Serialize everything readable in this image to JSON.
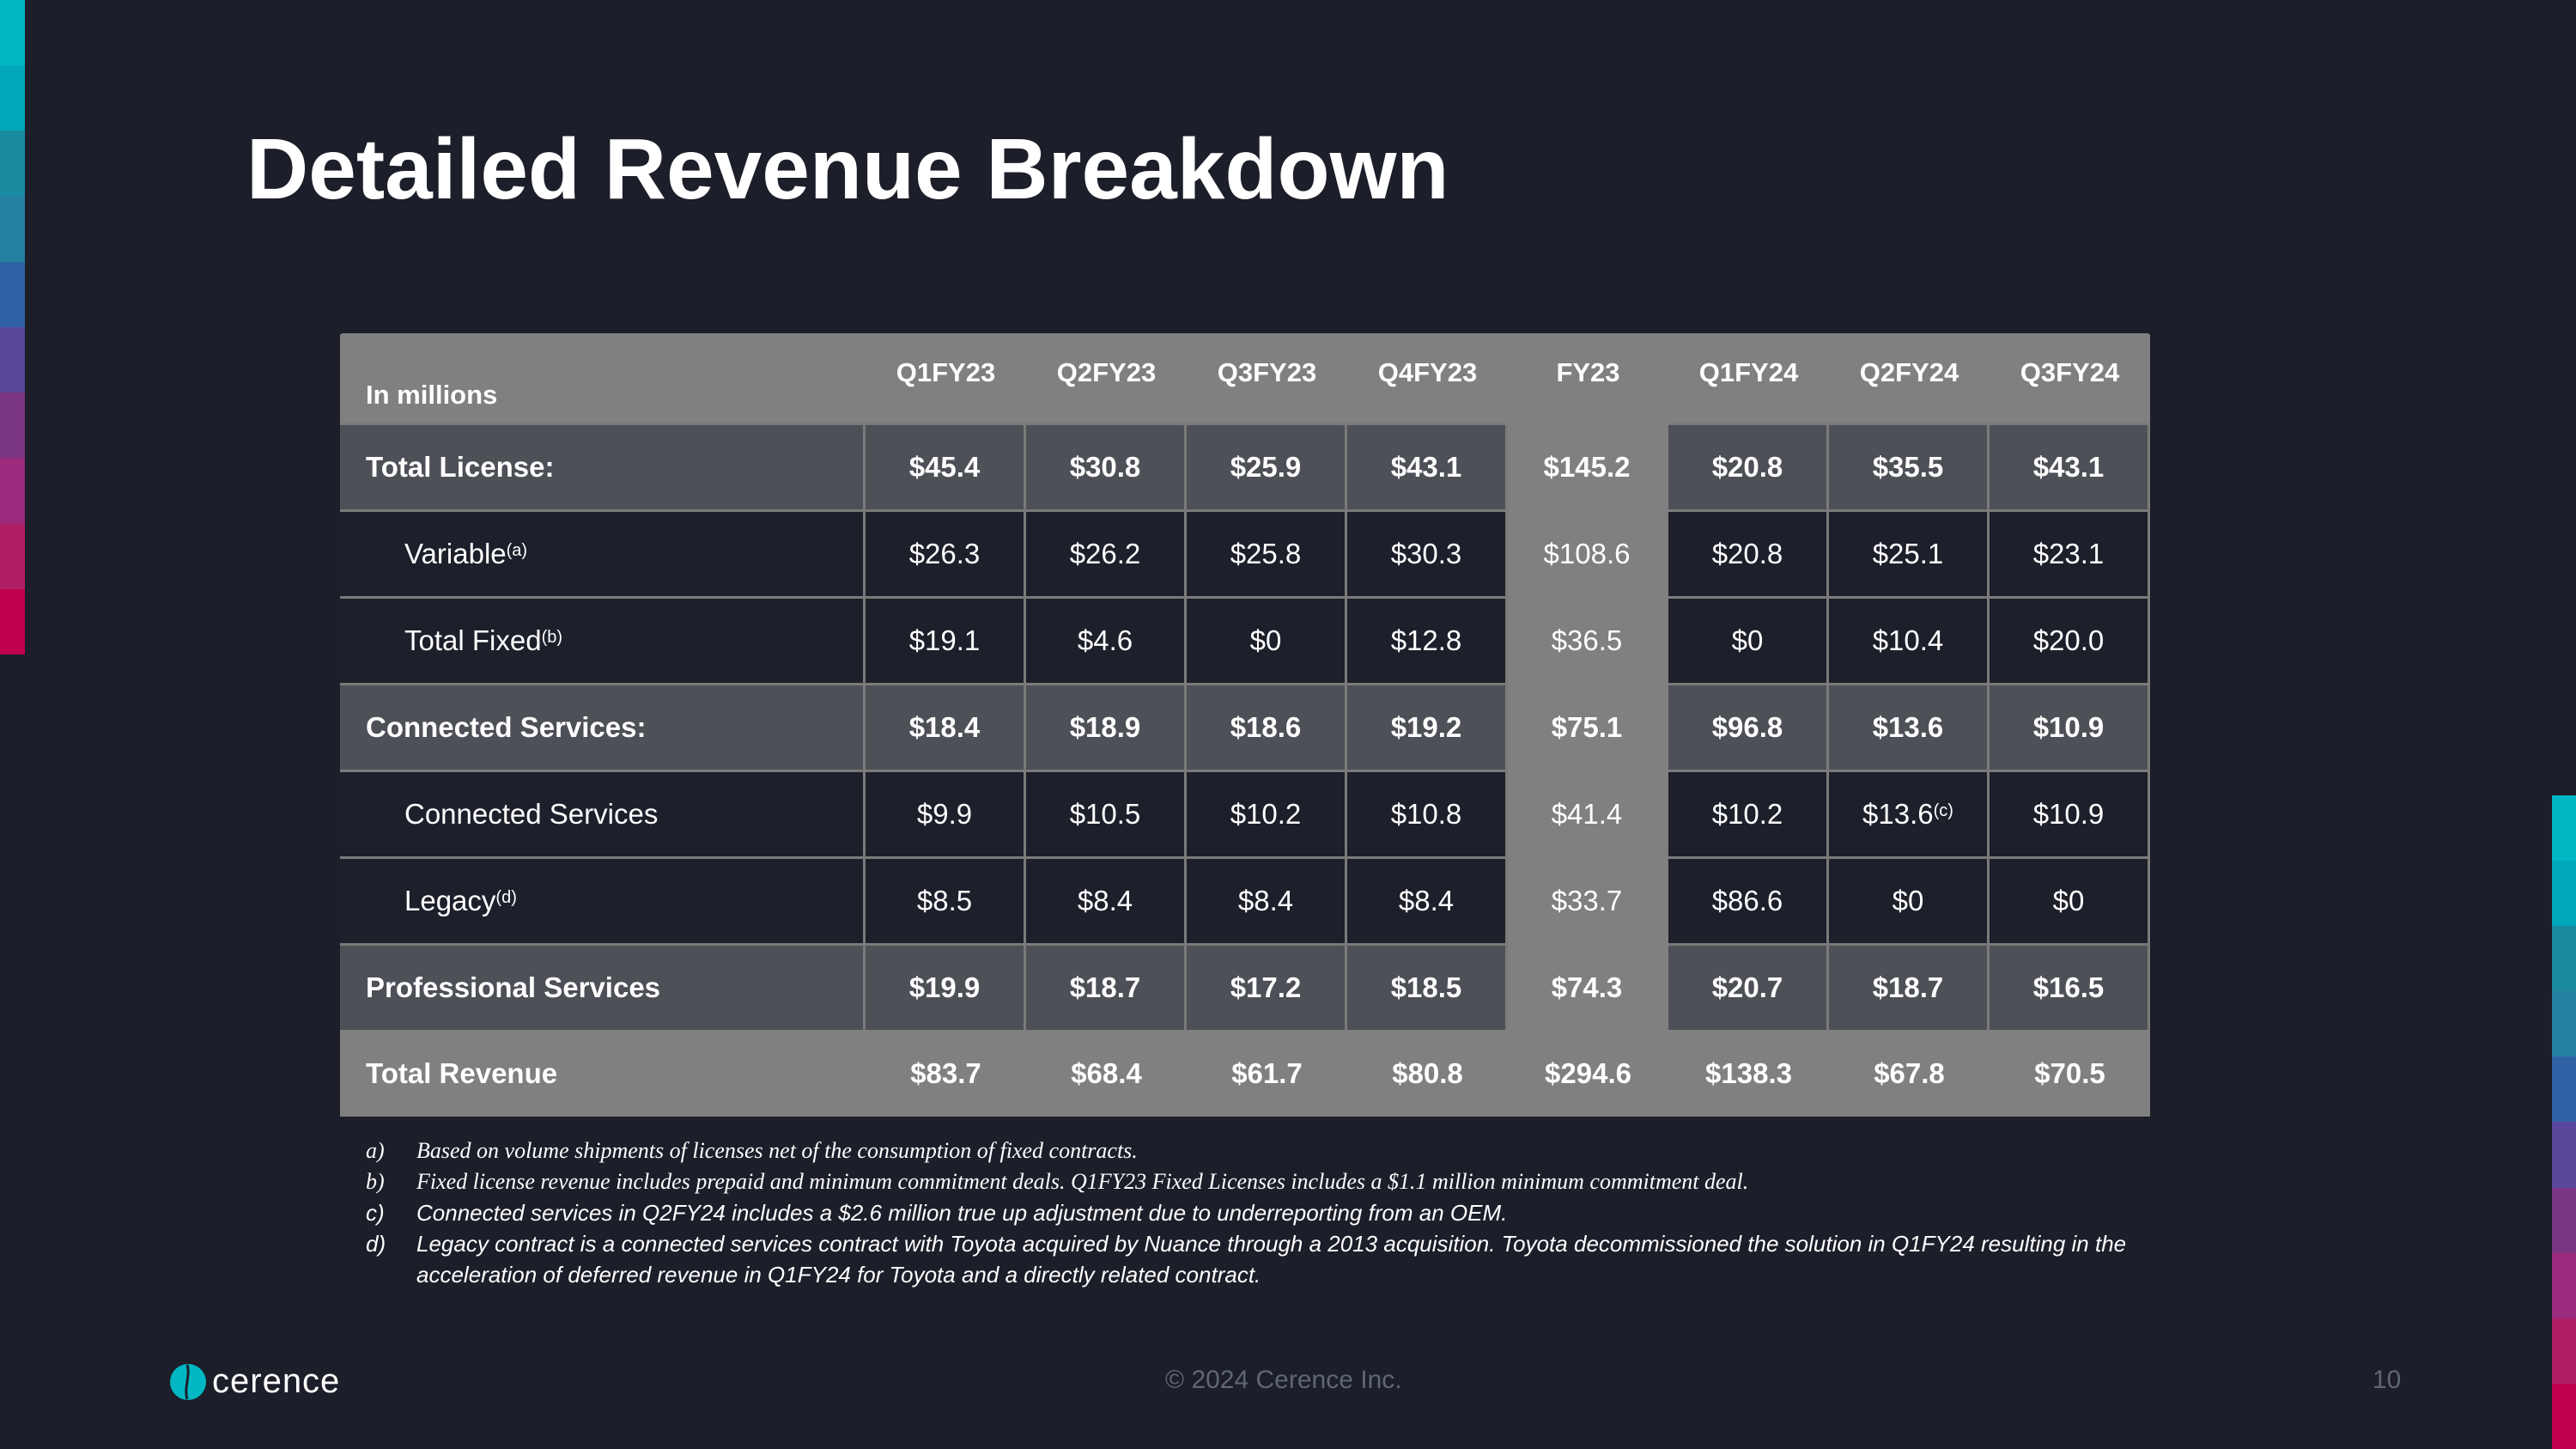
{
  "title": "Detailed Revenue Breakdown",
  "colors": {
    "background": "#1c1e29",
    "accent_cyan": "#00b7c3",
    "accent_magenta": "#c0004e",
    "header_gray": "#808080",
    "bold_row": "#4e5057",
    "normal_row": "#1d1f2a"
  },
  "stripe_colors": [
    "#00b8c4",
    "#00a7bb",
    "#1a8aa0",
    "#24809f",
    "#2f62a5",
    "#58479a",
    "#7b3683",
    "#9a2b7d",
    "#b01f66",
    "#c0004e"
  ],
  "table": {
    "corner_label": "In millions",
    "columns": [
      "Q1FY23",
      "Q2FY23",
      "Q3FY23",
      "Q4FY23",
      "FY23",
      "Q1FY24",
      "Q2FY24",
      "Q3FY24"
    ],
    "rows": [
      {
        "type": "bold",
        "label": "Total License:",
        "values": [
          "$45.4",
          "$30.8",
          "$25.9",
          "$43.1",
          "$145.2",
          "$20.8",
          "$35.5",
          "$43.1"
        ]
      },
      {
        "type": "normal",
        "label": "Variable",
        "sup": "(a)",
        "values": [
          "$26.3",
          "$26.2",
          "$25.8",
          "$30.3",
          "$108.6",
          "$20.8",
          "$25.1",
          "$23.1"
        ]
      },
      {
        "type": "normal",
        "label": "Total Fixed",
        "sup": "(b)",
        "values": [
          "$19.1",
          "$4.6",
          "$0",
          "$12.8",
          "$36.5",
          "$0",
          "$10.4",
          "$20.0"
        ]
      },
      {
        "type": "bold",
        "label": "Connected Services:",
        "values": [
          "$18.4",
          "$18.9",
          "$18.6",
          "$19.2",
          "$75.1",
          "$96.8",
          "$13.6",
          "$10.9"
        ]
      },
      {
        "type": "normal",
        "label": "Connected Services",
        "values": [
          "$9.9",
          "$10.5",
          "$10.2",
          "$10.8",
          "$41.4",
          "$10.2",
          "$13.6",
          "$10.9"
        ],
        "value_sups": {
          "6": "(c)"
        }
      },
      {
        "type": "normal",
        "label": "Legacy",
        "sup": "(d)",
        "values": [
          "$8.5",
          "$8.4",
          "$8.4",
          "$8.4",
          "$33.7",
          "$86.6",
          "$0",
          "$0"
        ]
      },
      {
        "type": "bold",
        "label": "Professional Services",
        "values": [
          "$19.9",
          "$18.7",
          "$17.2",
          "$18.5",
          "$74.3",
          "$20.7",
          "$18.7",
          "$16.5"
        ]
      },
      {
        "type": "total",
        "label": "Total Revenue",
        "values": [
          "$83.7",
          "$68.4",
          "$61.7",
          "$80.8",
          "$294.6",
          "$138.3",
          "$67.8",
          "$70.5"
        ]
      }
    ]
  },
  "footnotes": [
    {
      "key": "a)",
      "text": "Based on volume shipments of licenses net of the consumption of fixed contracts.",
      "serif": true
    },
    {
      "key": "b)",
      "text": "Fixed license revenue includes prepaid and minimum commitment deals. Q1FY23 Fixed Licenses includes a $1.1 million minimum commitment deal.",
      "serif": true
    },
    {
      "key": "c)",
      "text": "Connected services in Q2FY24 includes a $2.6 million true up adjustment due to underreporting from an OEM.",
      "serif": false
    },
    {
      "key": "d)",
      "text": "Legacy contract is a connected services contract with Toyota acquired by Nuance through a 2013 acquisition. Toyota decommissioned the solution in Q1FY24 resulting in the acceleration of deferred revenue in Q1FY24 for Toyota and a directly related contract.",
      "serif": false
    }
  ],
  "footer": {
    "logo_text": "cerence",
    "copyright": "© 2024 Cerence Inc.",
    "page_number": "10"
  }
}
